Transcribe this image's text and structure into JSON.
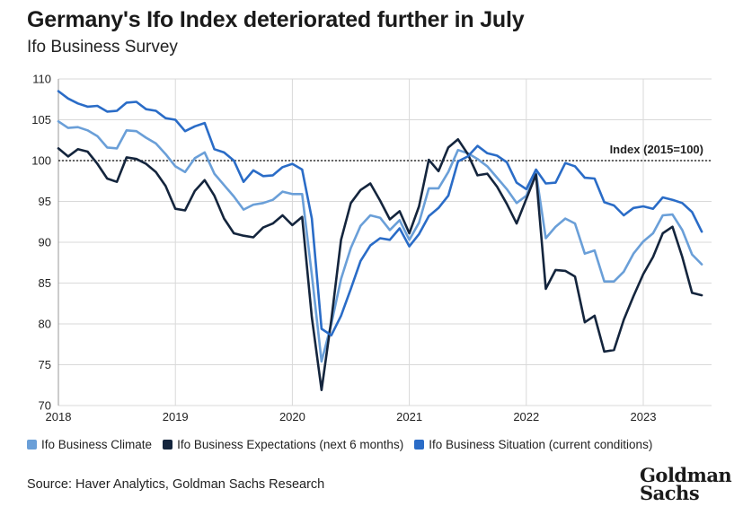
{
  "header": {
    "title": "Germany's Ifo Index deteriorated further in July",
    "subtitle": "Ifo Business Survey"
  },
  "footer": {
    "source": "Source: Haver Analytics, Goldman Sachs Research",
    "logo_line1": "Goldman",
    "logo_line2": "Sachs"
  },
  "colors": {
    "climate": "#6a9fd8",
    "expectations": "#14253d",
    "situation": "#2a6cc7",
    "grid": "#d9d9d9",
    "reference": "#333333"
  },
  "chart_data": {
    "type": "line",
    "title": "Germany's Ifo Index deteriorated further in July",
    "subtitle": "Ifo Business Survey",
    "xlabel": "",
    "ylabel": "",
    "ylim": [
      70,
      110
    ],
    "yticks": [
      70,
      75,
      80,
      85,
      90,
      95,
      100,
      105,
      110
    ],
    "xlim": [
      "2018-01",
      "2023-07"
    ],
    "xticks": [
      "2018",
      "2019",
      "2020",
      "2021",
      "2022",
      "2023"
    ],
    "grid": true,
    "legend_position": "bottom",
    "reference_line": {
      "y": 100,
      "label": "Index (2015=100)"
    },
    "x": [
      "2018-01",
      "2018-02",
      "2018-03",
      "2018-04",
      "2018-05",
      "2018-06",
      "2018-07",
      "2018-08",
      "2018-09",
      "2018-10",
      "2018-11",
      "2018-12",
      "2019-01",
      "2019-02",
      "2019-03",
      "2019-04",
      "2019-05",
      "2019-06",
      "2019-07",
      "2019-08",
      "2019-09",
      "2019-10",
      "2019-11",
      "2019-12",
      "2020-01",
      "2020-02",
      "2020-03",
      "2020-04",
      "2020-05",
      "2020-06",
      "2020-07",
      "2020-08",
      "2020-09",
      "2020-10",
      "2020-11",
      "2020-12",
      "2021-01",
      "2021-02",
      "2021-03",
      "2021-04",
      "2021-05",
      "2021-06",
      "2021-07",
      "2021-08",
      "2021-09",
      "2021-10",
      "2021-11",
      "2021-12",
      "2022-01",
      "2022-02",
      "2022-03",
      "2022-04",
      "2022-05",
      "2022-06",
      "2022-07",
      "2022-08",
      "2022-09",
      "2022-10",
      "2022-11",
      "2022-12",
      "2023-01",
      "2023-02",
      "2023-03",
      "2023-04",
      "2023-05",
      "2023-06",
      "2023-07"
    ],
    "series": [
      {
        "name": "Ifo Business Climate",
        "values": [
          104.8,
          104.0,
          104.1,
          103.7,
          103.0,
          101.6,
          101.5,
          103.7,
          103.6,
          102.8,
          102.1,
          100.8,
          99.3,
          98.6,
          100.3,
          101.0,
          98.4,
          97.0,
          95.6,
          94.0,
          94.6,
          94.8,
          95.2,
          96.2,
          95.9,
          95.9,
          86.0,
          75.4,
          80.0,
          85.5,
          89.3,
          92.0,
          93.3,
          93.0,
          91.5,
          92.7,
          90.3,
          92.4,
          96.6,
          96.6,
          98.6,
          101.3,
          100.9,
          100.2,
          99.3,
          97.9,
          96.5,
          94.8,
          95.7,
          98.5,
          90.5,
          91.9,
          92.9,
          92.3,
          88.6,
          89.0,
          85.2,
          85.2,
          86.4,
          88.6,
          90.1,
          91.1,
          93.3,
          93.4,
          91.5,
          88.5,
          87.3
        ]
      },
      {
        "name": "Ifo Business Expectations (next 6 months)",
        "values": [
          101.5,
          100.5,
          101.4,
          101.1,
          99.6,
          97.8,
          97.4,
          100.4,
          100.2,
          99.6,
          98.6,
          96.9,
          94.1,
          93.9,
          96.3,
          97.6,
          95.7,
          92.9,
          91.1,
          90.8,
          90.6,
          91.8,
          92.3,
          93.3,
          92.1,
          93.1,
          80.8,
          71.9,
          80.5,
          90.3,
          94.8,
          96.4,
          97.2,
          95.1,
          92.8,
          93.8,
          91.1,
          94.4,
          100.1,
          98.7,
          101.6,
          102.6,
          100.8,
          98.2,
          98.4,
          96.8,
          94.7,
          92.3,
          95.3,
          98.3,
          84.3,
          86.6,
          86.5,
          85.8,
          80.2,
          81.0,
          76.6,
          76.8,
          80.5,
          83.4,
          86.1,
          88.2,
          91.1,
          91.9,
          88.2,
          83.8,
          83.5
        ]
      },
      {
        "name": "Ifo Business Situation (current conditions)",
        "values": [
          108.5,
          107.6,
          107.0,
          106.6,
          106.7,
          106.0,
          106.1,
          107.1,
          107.2,
          106.3,
          106.1,
          105.2,
          105.0,
          103.6,
          104.2,
          104.6,
          101.4,
          101.0,
          100.0,
          97.4,
          98.8,
          98.1,
          98.2,
          99.2,
          99.6,
          98.9,
          92.9,
          79.4,
          78.6,
          81.0,
          84.3,
          87.7,
          89.6,
          90.5,
          90.3,
          91.7,
          89.5,
          91.0,
          93.2,
          94.2,
          95.7,
          99.9,
          100.5,
          101.8,
          100.9,
          100.6,
          99.8,
          97.3,
          96.5,
          98.9,
          97.2,
          97.3,
          99.7,
          99.3,
          97.9,
          97.8,
          94.9,
          94.5,
          93.3,
          94.2,
          94.4,
          94.1,
          95.5,
          95.2,
          94.8,
          93.7,
          91.3
        ]
      }
    ]
  }
}
